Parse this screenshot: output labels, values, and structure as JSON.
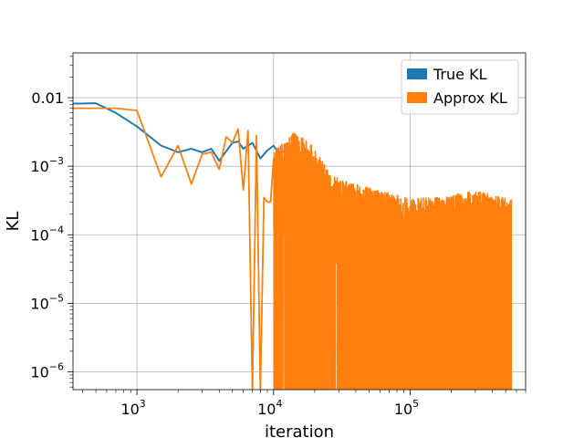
{
  "chart_data": {
    "type": "line",
    "title": "",
    "xlabel": "iteration",
    "ylabel": "KL",
    "xscale": "log",
    "yscale": "log",
    "xlim": [
      340,
      700000
    ],
    "ylim": [
      5.5e-07,
      0.045
    ],
    "grid": true,
    "legend_position": "top-right",
    "x_ticks": [
      {
        "value": 1000,
        "base": "10",
        "exp": "3"
      },
      {
        "value": 10000,
        "base": "10",
        "exp": "4"
      },
      {
        "value": 100000,
        "base": "10",
        "exp": "5"
      }
    ],
    "y_ticks": [
      {
        "value": 0.01,
        "text": "0.01",
        "base": "",
        "exp": ""
      },
      {
        "value": 0.001,
        "text": "",
        "base": "10",
        "exp": "−3"
      },
      {
        "value": 0.0001,
        "text": "",
        "base": "10",
        "exp": "−4"
      },
      {
        "value": 1e-05,
        "text": "",
        "base": "10",
        "exp": "−5"
      },
      {
        "value": 1e-06,
        "text": "",
        "base": "10",
        "exp": "−6"
      }
    ],
    "series": [
      {
        "name": "True KL",
        "color": "#1f77b4",
        "points": [
          [
            340,
            0.0082
          ],
          [
            500,
            0.0083
          ],
          [
            700,
            0.006
          ],
          [
            1000,
            0.0038
          ],
          [
            1500,
            0.002
          ],
          [
            2000,
            0.0016
          ],
          [
            2500,
            0.0018
          ],
          [
            3000,
            0.0016
          ],
          [
            3500,
            0.0018
          ],
          [
            4000,
            0.0012
          ],
          [
            5000,
            0.0022
          ],
          [
            5500,
            0.0023
          ],
          [
            6000,
            0.0018
          ],
          [
            7000,
            0.0022
          ],
          [
            8000,
            0.0013
          ],
          [
            9000,
            0.0017
          ],
          [
            10000,
            0.002
          ],
          [
            11000,
            0.0015
          ],
          [
            12000,
            0.0017
          ],
          [
            13000,
            0.0012
          ],
          [
            14000,
            0.0014
          ],
          [
            15000,
            0.001
          ],
          [
            16000,
            0.0009
          ],
          [
            17000,
            0.0007
          ],
          [
            18000,
            0.0005
          ],
          [
            20000,
            0.0004
          ],
          [
            22000,
            0.0003
          ],
          [
            24000,
            0.0002
          ],
          [
            26000,
            0.00015
          ],
          [
            28000,
            0.0001
          ],
          [
            30000,
            0.00012
          ],
          [
            35000,
            8e-05
          ],
          [
            40000,
            5e-05
          ],
          [
            45000,
            2e-05
          ],
          [
            50000,
            3e-05
          ],
          [
            60000,
            1.5e-05
          ],
          [
            70000,
            2e-05
          ],
          [
            80000,
            2.5e-05
          ],
          [
            90000,
            1e-05
          ],
          [
            100000,
            2.5e-05
          ]
        ]
      },
      {
        "name": "Approx KL",
        "color": "#ff7f0e",
        "points": [
          [
            340,
            0.007
          ],
          [
            700,
            0.007
          ],
          [
            1000,
            0.0065
          ],
          [
            1500,
            0.0007
          ],
          [
            2000,
            0.002
          ],
          [
            2500,
            0.00055
          ],
          [
            3000,
            0.0015
          ],
          [
            3500,
            0.0016
          ],
          [
            4000,
            0.0009
          ],
          [
            4500,
            0.0027
          ],
          [
            5000,
            0.0022
          ],
          [
            5500,
            0.0035
          ],
          [
            6000,
            0.00045
          ],
          [
            6500,
            0.0033
          ],
          [
            7000,
            5e-07
          ],
          [
            7500,
            0.0028
          ],
          [
            8000,
            5e-07
          ],
          [
            8500,
            0.00035
          ],
          [
            9000,
            0.0003
          ],
          [
            9500,
            0.0003
          ],
          [
            10000,
            0.0013
          ]
        ],
        "oscillation": {
          "x_start": 10000,
          "x_end": 550000,
          "floor": 5e-07,
          "upper_values": [
            0.0015,
            0.0028,
            0.0023,
            0.0018,
            0.0012,
            0.0008,
            0.0006,
            0.0005,
            0.0004,
            0.00035,
            0.0003,
            0.00032,
            0.00035,
            0.0004,
            0.0003
          ],
          "upper_x": [
            10000,
            14000,
            17000,
            20000,
            22000,
            25000,
            30000,
            40000,
            60000,
            80000,
            100000,
            150000,
            200000,
            300000,
            550000
          ],
          "lower_values": [
            0.0002,
            7e-05,
            3e-05,
            1.5e-05,
            8e-06
          ],
          "lower_x": [
            20000,
            30000,
            40000,
            50000,
            70000
          ]
        }
      }
    ]
  }
}
